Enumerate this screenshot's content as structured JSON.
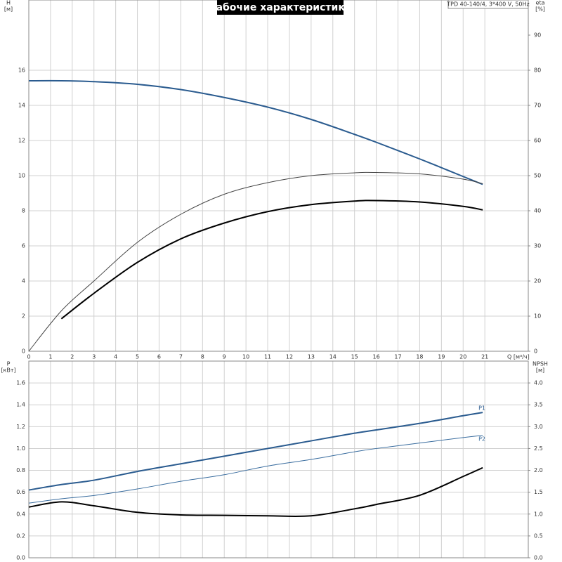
{
  "chart_data": [
    {
      "type": "line",
      "title": "Рабочие характеристики",
      "subtitle": "TPD 40-140/4, 3*400 V, 50Hz",
      "ylabel": "H",
      "ylabel_unit": "[м]",
      "y2label": "eta",
      "y2label_unit": "[%]",
      "xlabel": "Q [м³/ч]",
      "x": [
        0,
        1.5,
        3,
        5,
        7,
        9,
        11,
        13,
        15,
        16,
        18,
        20,
        20.9
      ],
      "xlim": [
        0,
        23
      ],
      "xticks": [
        0,
        1,
        2,
        3,
        4,
        5,
        6,
        7,
        8,
        9,
        10,
        11,
        12,
        13,
        14,
        15,
        16,
        17,
        18,
        19,
        20,
        21
      ],
      "ylim": [
        0,
        20
      ],
      "yticks": [
        0,
        2,
        4,
        6,
        8,
        10,
        12,
        14,
        16
      ],
      "y2lim": [
        0,
        100
      ],
      "y2ticks": [
        0,
        10,
        20,
        30,
        40,
        50,
        60,
        70,
        80,
        90
      ],
      "grid": true,
      "series": [
        {
          "color": "#2a5b8f",
          "values": [
            15.4,
            15.4,
            15.35,
            15.2,
            14.9,
            14.45,
            13.9,
            13.2,
            12.35,
            11.9,
            10.95,
            9.95,
            9.5
          ]
        },
        {
          "color": "#444444",
          "axis": "y2",
          "values": [
            0,
            11.5,
            20,
            31,
            39,
            44.7,
            48,
            50,
            50.8,
            50.9,
            50.5,
            49,
            47.7
          ]
        },
        {
          "color": "#000000",
          "axis": "y2",
          "values": [
            null,
            9.25,
            16.5,
            25.3,
            32,
            36.5,
            39.75,
            41.75,
            42.75,
            42.9,
            42.5,
            41.25,
            40.25
          ]
        }
      ]
    },
    {
      "type": "line",
      "ylabel": "P",
      "ylabel_unit": "[кВт]",
      "y2label": "NPSH",
      "y2label_unit": "[м]",
      "x": [
        0,
        1.5,
        3,
        5,
        7,
        9,
        11,
        13,
        15,
        16,
        18,
        20,
        20.9
      ],
      "xlim": [
        0,
        23
      ],
      "ylim": [
        0,
        1.8
      ],
      "yticks": [
        {
          "value": 0,
          "label": "0.0"
        },
        0.2,
        0.4,
        0.6,
        0.8,
        {
          "value": 1,
          "label": "1.0"
        },
        1.2,
        1.4,
        1.6
      ],
      "y2lim": [
        0,
        4.5
      ],
      "y2ticks": [
        {
          "value": 0,
          "label": "0.0"
        },
        0.5,
        {
          "value": 1,
          "label": "1.0"
        },
        1.5,
        {
          "value": 2,
          "label": "2.0"
        },
        2.5,
        {
          "value": 3,
          "label": "3.0"
        },
        3.5,
        {
          "value": 4,
          "label": "4.0"
        }
      ],
      "grid": true,
      "series": [
        {
          "name": "P1",
          "color": "#2a5b8f",
          "values": [
            0.62,
            0.67,
            0.71,
            0.79,
            0.86,
            0.93,
            1.0,
            1.07,
            1.14,
            1.17,
            1.23,
            1.3,
            1.33
          ]
        },
        {
          "name": "P2",
          "color": "#3a6d9f",
          "values": [
            0.5,
            0.54,
            0.57,
            0.63,
            0.7,
            0.76,
            0.84,
            0.9,
            0.97,
            1.0,
            1.05,
            1.1,
            1.12
          ]
        },
        {
          "color": "#000000",
          "axis": "y2",
          "values": [
            1.16,
            1.28,
            1.19,
            1.04,
            0.98,
            0.97,
            0.96,
            0.96,
            1.12,
            1.22,
            1.43,
            1.86,
            2.06
          ]
        }
      ]
    }
  ]
}
